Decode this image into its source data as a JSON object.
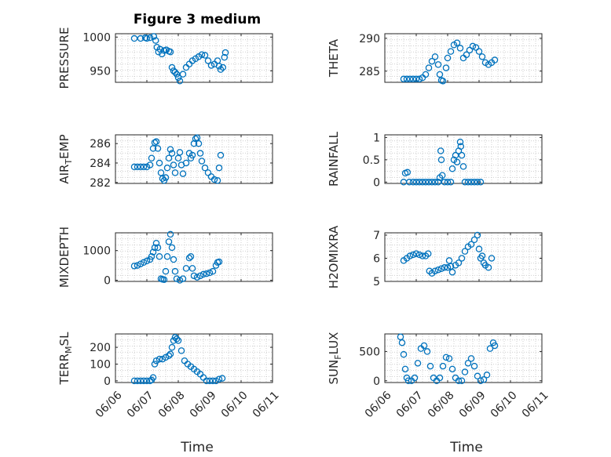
{
  "figure": {
    "title": "Figure 3 medium",
    "xlabel": "Time",
    "marker_color": "#0072BD",
    "grid": "on (minor dotted)"
  },
  "chart_data": [
    {
      "type": "scatter",
      "ylabel_main": "PRESSURE",
      "ylabel_sub": "",
      "ylabel_tail": "",
      "xlim": [
        0,
        5
      ],
      "xticks": [
        "06/06",
        "06/07",
        "06/08",
        "06/09",
        "06/10",
        "06/11"
      ],
      "ylim": [
        933,
        1005
      ],
      "yticks": [
        950,
        1000
      ],
      "points": [
        [
          0.6,
          998
        ],
        [
          0.8,
          998
        ],
        [
          0.95,
          999
        ],
        [
          1.0,
          998
        ],
        [
          1.1,
          999
        ],
        [
          1.22,
          1001
        ],
        [
          1.28,
          995
        ],
        [
          1.32,
          985
        ],
        [
          1.37,
          978
        ],
        [
          1.42,
          982
        ],
        [
          1.48,
          975
        ],
        [
          1.55,
          980
        ],
        [
          1.62,
          981
        ],
        [
          1.7,
          979
        ],
        [
          1.75,
          978
        ],
        [
          1.8,
          955
        ],
        [
          1.85,
          950
        ],
        [
          1.9,
          948
        ],
        [
          1.95,
          945
        ],
        [
          2.0,
          940
        ],
        [
          2.05,
          935
        ],
        [
          2.15,
          945
        ],
        [
          2.25,
          955
        ],
        [
          2.35,
          960
        ],
        [
          2.45,
          965
        ],
        [
          2.55,
          968
        ],
        [
          2.65,
          971
        ],
        [
          2.75,
          974
        ],
        [
          2.85,
          973
        ],
        [
          2.95,
          965
        ],
        [
          3.05,
          958
        ],
        [
          3.15,
          960
        ],
        [
          3.25,
          965
        ],
        [
          3.3,
          957
        ],
        [
          3.35,
          952
        ],
        [
          3.42,
          955
        ],
        [
          3.47,
          970
        ],
        [
          3.5,
          977
        ]
      ]
    },
    {
      "type": "scatter",
      "ylabel_main": "THETA",
      "ylabel_sub": "",
      "ylabel_tail": "",
      "xlim": [
        0,
        5
      ],
      "xticks": [
        "06/06",
        "06/07",
        "06/08",
        "06/09",
        "06/10",
        "06/11"
      ],
      "ylim": [
        283.3,
        290.7
      ],
      "yticks": [
        285,
        290
      ],
      "points": [
        [
          0.6,
          283.8
        ],
        [
          0.7,
          283.8
        ],
        [
          0.8,
          283.8
        ],
        [
          0.9,
          283.8
        ],
        [
          1.0,
          283.8
        ],
        [
          1.1,
          283.8
        ],
        [
          1.2,
          284.0
        ],
        [
          1.3,
          284.5
        ],
        [
          1.4,
          285.5
        ],
        [
          1.5,
          286.5
        ],
        [
          1.6,
          287.2
        ],
        [
          1.7,
          286.0
        ],
        [
          1.75,
          284.5
        ],
        [
          1.8,
          283.6
        ],
        [
          1.85,
          283.5
        ],
        [
          1.95,
          285.5
        ],
        [
          2.0,
          287.0
        ],
        [
          2.1,
          288.0
        ],
        [
          2.2,
          289.0
        ],
        [
          2.3,
          289.3
        ],
        [
          2.4,
          288.5
        ],
        [
          2.5,
          287.0
        ],
        [
          2.6,
          287.5
        ],
        [
          2.7,
          288.2
        ],
        [
          2.8,
          288.8
        ],
        [
          2.9,
          288.6
        ],
        [
          3.0,
          288.0
        ],
        [
          3.1,
          287.2
        ],
        [
          3.2,
          286.3
        ],
        [
          3.3,
          286.0
        ],
        [
          3.4,
          286.3
        ],
        [
          3.5,
          286.7
        ]
      ]
    },
    {
      "type": "scatter",
      "ylabel_main": "AIR",
      "ylabel_sub": "T",
      "ylabel_tail": "EMP",
      "xlim": [
        0,
        5
      ],
      "xticks": [
        "06/06",
        "06/07",
        "06/08",
        "06/09",
        "06/10",
        "06/11"
      ],
      "ylim": [
        281.9,
        286.9
      ],
      "yticks": [
        282,
        284,
        286
      ],
      "points": [
        [
          0.6,
          283.6
        ],
        [
          0.7,
          283.6
        ],
        [
          0.8,
          283.6
        ],
        [
          0.9,
          283.6
        ],
        [
          1.0,
          283.6
        ],
        [
          1.1,
          283.8
        ],
        [
          1.15,
          284.5
        ],
        [
          1.2,
          285.5
        ],
        [
          1.25,
          286.1
        ],
        [
          1.3,
          286.2
        ],
        [
          1.35,
          285.5
        ],
        [
          1.4,
          284.0
        ],
        [
          1.45,
          283.0
        ],
        [
          1.5,
          282.4
        ],
        [
          1.55,
          282.2
        ],
        [
          1.6,
          282.5
        ],
        [
          1.65,
          283.5
        ],
        [
          1.7,
          284.5
        ],
        [
          1.75,
          285.4
        ],
        [
          1.8,
          285.0
        ],
        [
          1.85,
          283.8
        ],
        [
          1.9,
          283.0
        ],
        [
          2.0,
          284.5
        ],
        [
          2.05,
          285.1
        ],
        [
          2.1,
          283.8
        ],
        [
          2.15,
          282.9
        ],
        [
          2.25,
          284.0
        ],
        [
          2.35,
          285.0
        ],
        [
          2.4,
          284.5
        ],
        [
          2.45,
          284.8
        ],
        [
          2.5,
          286.0
        ],
        [
          2.55,
          286.5
        ],
        [
          2.6,
          286.6
        ],
        [
          2.65,
          286.0
        ],
        [
          2.7,
          285.0
        ],
        [
          2.75,
          284.2
        ],
        [
          2.85,
          283.5
        ],
        [
          2.95,
          283.0
        ],
        [
          3.05,
          282.6
        ],
        [
          3.15,
          282.3
        ],
        [
          3.25,
          282.2
        ],
        [
          3.3,
          283.5
        ],
        [
          3.35,
          284.8
        ]
      ]
    },
    {
      "type": "scatter",
      "ylabel_main": "RAINFALL",
      "ylabel_sub": "",
      "ylabel_tail": "",
      "xlim": [
        0,
        5
      ],
      "xticks": [
        "06/06",
        "06/07",
        "06/08",
        "06/09",
        "06/10",
        "06/11"
      ],
      "ylim": [
        -0.03,
        1.06
      ],
      "yticks": [
        0,
        0.5,
        1
      ],
      "points": [
        [
          0.6,
          0.0
        ],
        [
          0.65,
          0.2
        ],
        [
          0.72,
          0.22
        ],
        [
          0.78,
          0.0
        ],
        [
          0.9,
          0.0
        ],
        [
          1.0,
          0.0
        ],
        [
          1.1,
          0.0
        ],
        [
          1.2,
          0.0
        ],
        [
          1.3,
          0.0
        ],
        [
          1.4,
          0.0
        ],
        [
          1.5,
          0.0
        ],
        [
          1.6,
          0.0
        ],
        [
          1.7,
          0.0
        ],
        [
          1.75,
          0.1
        ],
        [
          1.78,
          0.7
        ],
        [
          1.8,
          0.5
        ],
        [
          1.83,
          0.15
        ],
        [
          1.9,
          0.0
        ],
        [
          2.0,
          0.0
        ],
        [
          2.1,
          0.0
        ],
        [
          2.15,
          0.3
        ],
        [
          2.2,
          0.5
        ],
        [
          2.25,
          0.6
        ],
        [
          2.3,
          0.45
        ],
        [
          2.35,
          0.7
        ],
        [
          2.4,
          0.9
        ],
        [
          2.42,
          0.8
        ],
        [
          2.45,
          0.6
        ],
        [
          2.5,
          0.35
        ],
        [
          2.55,
          0.0
        ],
        [
          2.65,
          0.0
        ],
        [
          2.75,
          0.0
        ],
        [
          2.85,
          0.0
        ],
        [
          2.95,
          0.0
        ],
        [
          3.05,
          0.0
        ]
      ]
    },
    {
      "type": "scatter",
      "ylabel_main": "MIXDEPTH",
      "ylabel_sub": "",
      "ylabel_tail": "",
      "xlim": [
        0,
        5
      ],
      "xticks": [
        "06/06",
        "06/07",
        "06/08",
        "06/09",
        "06/10",
        "06/11"
      ],
      "ylim": [
        -40,
        1600
      ],
      "yticks": [
        0,
        1000
      ],
      "points": [
        [
          0.6,
          480
        ],
        [
          0.7,
          500
        ],
        [
          0.8,
          550
        ],
        [
          0.9,
          600
        ],
        [
          1.0,
          650
        ],
        [
          1.1,
          700
        ],
        [
          1.15,
          800
        ],
        [
          1.2,
          950
        ],
        [
          1.25,
          1100
        ],
        [
          1.3,
          1250
        ],
        [
          1.35,
          1100
        ],
        [
          1.4,
          800
        ],
        [
          1.45,
          50
        ],
        [
          1.5,
          30
        ],
        [
          1.55,
          20
        ],
        [
          1.6,
          300
        ],
        [
          1.65,
          800
        ],
        [
          1.7,
          1300
        ],
        [
          1.75,
          1550
        ],
        [
          1.8,
          1100
        ],
        [
          1.85,
          700
        ],
        [
          1.9,
          300
        ],
        [
          1.95,
          50
        ],
        [
          2.05,
          0
        ],
        [
          2.15,
          50
        ],
        [
          2.25,
          400
        ],
        [
          2.35,
          750
        ],
        [
          2.4,
          800
        ],
        [
          2.45,
          400
        ],
        [
          2.5,
          150
        ],
        [
          2.6,
          100
        ],
        [
          2.7,
          150
        ],
        [
          2.8,
          200
        ],
        [
          2.9,
          220
        ],
        [
          3.0,
          250
        ],
        [
          3.1,
          300
        ],
        [
          3.2,
          500
        ],
        [
          3.25,
          600
        ],
        [
          3.3,
          620
        ]
      ]
    },
    {
      "type": "scatter",
      "ylabel_main": "H2OMIXRA",
      "ylabel_sub": "",
      "ylabel_tail": "",
      "xlim": [
        0,
        5
      ],
      "xticks": [
        "06/06",
        "06/07",
        "06/08",
        "06/09",
        "06/10",
        "06/11"
      ],
      "ylim": [
        5.0,
        7.1
      ],
      "yticks": [
        5,
        6,
        7
      ],
      "points": [
        [
          0.6,
          5.9
        ],
        [
          0.7,
          6.0
        ],
        [
          0.8,
          6.1
        ],
        [
          0.9,
          6.15
        ],
        [
          1.0,
          6.2
        ],
        [
          1.1,
          6.15
        ],
        [
          1.2,
          6.1
        ],
        [
          1.3,
          6.1
        ],
        [
          1.38,
          6.2
        ],
        [
          1.42,
          5.45
        ],
        [
          1.5,
          5.35
        ],
        [
          1.6,
          5.45
        ],
        [
          1.7,
          5.5
        ],
        [
          1.8,
          5.55
        ],
        [
          1.9,
          5.6
        ],
        [
          2.0,
          5.6
        ],
        [
          2.05,
          5.9
        ],
        [
          2.1,
          5.65
        ],
        [
          2.15,
          5.4
        ],
        [
          2.25,
          5.7
        ],
        [
          2.35,
          5.8
        ],
        [
          2.45,
          6.0
        ],
        [
          2.55,
          6.3
        ],
        [
          2.65,
          6.5
        ],
        [
          2.75,
          6.6
        ],
        [
          2.85,
          6.8
        ],
        [
          2.95,
          7.0
        ],
        [
          3.0,
          6.4
        ],
        [
          3.05,
          6.0
        ],
        [
          3.1,
          6.1
        ],
        [
          3.15,
          5.8
        ],
        [
          3.2,
          5.7
        ],
        [
          3.3,
          5.6
        ],
        [
          3.4,
          6.0
        ]
      ]
    },
    {
      "type": "scatter",
      "ylabel_main": "TERR",
      "ylabel_sub": "M",
      "ylabel_tail": "SL",
      "xlim": [
        0,
        5
      ],
      "xticks": [
        "06/06",
        "06/07",
        "06/08",
        "06/09",
        "06/10",
        "06/11"
      ],
      "ylim": [
        -10,
        280
      ],
      "yticks": [
        0,
        100,
        200
      ],
      "points": [
        [
          0.6,
          0
        ],
        [
          0.7,
          0
        ],
        [
          0.8,
          0
        ],
        [
          0.9,
          0
        ],
        [
          1.0,
          0
        ],
        [
          1.1,
          0
        ],
        [
          1.15,
          5
        ],
        [
          1.2,
          20
        ],
        [
          1.25,
          100
        ],
        [
          1.3,
          120
        ],
        [
          1.4,
          130
        ],
        [
          1.5,
          130
        ],
        [
          1.6,
          140
        ],
        [
          1.7,
          150
        ],
        [
          1.75,
          160
        ],
        [
          1.8,
          200
        ],
        [
          1.85,
          240
        ],
        [
          1.9,
          260
        ],
        [
          1.95,
          250
        ],
        [
          2.0,
          240
        ],
        [
          2.1,
          180
        ],
        [
          2.2,
          120
        ],
        [
          2.3,
          100
        ],
        [
          2.4,
          85
        ],
        [
          2.5,
          70
        ],
        [
          2.6,
          55
        ],
        [
          2.7,
          40
        ],
        [
          2.8,
          20
        ],
        [
          2.9,
          0
        ],
        [
          3.0,
          0
        ],
        [
          3.1,
          0
        ],
        [
          3.2,
          0
        ],
        [
          3.3,
          10
        ],
        [
          3.4,
          15
        ]
      ]
    },
    {
      "type": "scatter",
      "ylabel_main": "SUN",
      "ylabel_sub": "F",
      "ylabel_tail": "LUX",
      "xlim": [
        0,
        5
      ],
      "xticks": [
        "06/06",
        "06/07",
        "06/08",
        "06/09",
        "06/10",
        "06/11"
      ],
      "ylim": [
        -30,
        800
      ],
      "yticks": [
        0,
        500
      ],
      "points": [
        [
          0.5,
          750
        ],
        [
          0.55,
          650
        ],
        [
          0.6,
          450
        ],
        [
          0.65,
          200
        ],
        [
          0.7,
          50
        ],
        [
          0.75,
          0
        ],
        [
          0.85,
          0
        ],
        [
          0.95,
          50
        ],
        [
          1.05,
          300
        ],
        [
          1.15,
          550
        ],
        [
          1.25,
          600
        ],
        [
          1.35,
          500
        ],
        [
          1.45,
          250
        ],
        [
          1.55,
          50
        ],
        [
          1.65,
          0
        ],
        [
          1.75,
          50
        ],
        [
          1.85,
          250
        ],
        [
          1.95,
          400
        ],
        [
          2.05,
          380
        ],
        [
          2.15,
          200
        ],
        [
          2.25,
          50
        ],
        [
          2.35,
          0
        ],
        [
          2.45,
          0
        ],
        [
          2.55,
          150
        ],
        [
          2.65,
          300
        ],
        [
          2.75,
          380
        ],
        [
          2.85,
          250
        ],
        [
          2.95,
          80
        ],
        [
          3.05,
          0
        ],
        [
          3.15,
          20
        ],
        [
          3.25,
          100
        ],
        [
          3.35,
          550
        ],
        [
          3.45,
          650
        ],
        [
          3.5,
          600
        ]
      ]
    }
  ]
}
